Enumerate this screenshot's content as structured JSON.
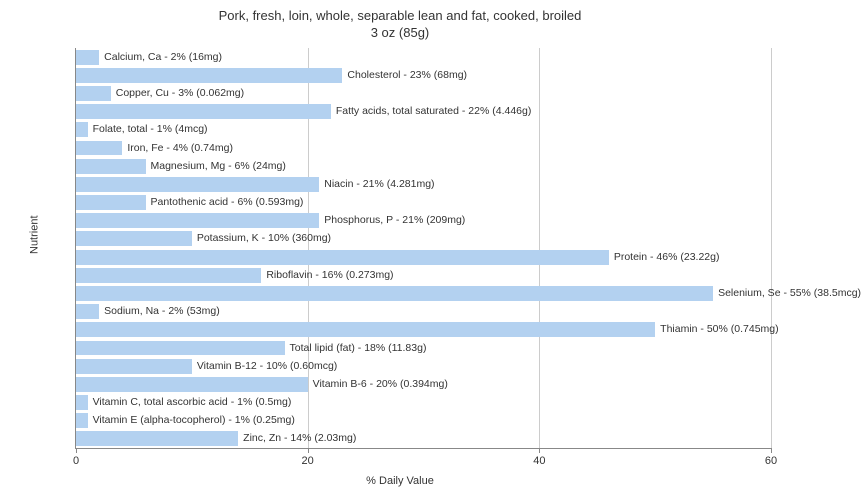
{
  "chart": {
    "type": "bar",
    "title_line1": "Pork, fresh, loin, whole, separable lean and fat, cooked, broiled",
    "title_line2": "3 oz (85g)",
    "title_fontsize": 13,
    "x_label": "% Daily Value",
    "y_label": "Nutrient",
    "label_fontsize": 11,
    "xlim": [
      0,
      60
    ],
    "x_ticks": [
      0,
      20,
      40,
      60
    ],
    "bar_color": "#b3d1f0",
    "grid_color": "#cccccc",
    "axis_color": "#888888",
    "background_color": "#ffffff",
    "text_color": "#333333",
    "bar_label_fontsize": 10.5,
    "bars": [
      {
        "label": "Calcium, Ca - 2% (16mg)",
        "value": 2
      },
      {
        "label": "Cholesterol - 23% (68mg)",
        "value": 23
      },
      {
        "label": "Copper, Cu - 3% (0.062mg)",
        "value": 3
      },
      {
        "label": "Fatty acids, total saturated - 22% (4.446g)",
        "value": 22
      },
      {
        "label": "Folate, total - 1% (4mcg)",
        "value": 1
      },
      {
        "label": "Iron, Fe - 4% (0.74mg)",
        "value": 4
      },
      {
        "label": "Magnesium, Mg - 6% (24mg)",
        "value": 6
      },
      {
        "label": "Niacin - 21% (4.281mg)",
        "value": 21
      },
      {
        "label": "Pantothenic acid - 6% (0.593mg)",
        "value": 6
      },
      {
        "label": "Phosphorus, P - 21% (209mg)",
        "value": 21
      },
      {
        "label": "Potassium, K - 10% (360mg)",
        "value": 10
      },
      {
        "label": "Protein - 46% (23.22g)",
        "value": 46
      },
      {
        "label": "Riboflavin - 16% (0.273mg)",
        "value": 16
      },
      {
        "label": "Selenium, Se - 55% (38.5mcg)",
        "value": 55
      },
      {
        "label": "Sodium, Na - 2% (53mg)",
        "value": 2
      },
      {
        "label": "Thiamin - 50% (0.745mg)",
        "value": 50
      },
      {
        "label": "Total lipid (fat) - 18% (11.83g)",
        "value": 18
      },
      {
        "label": "Vitamin B-12 - 10% (0.60mcg)",
        "value": 10
      },
      {
        "label": "Vitamin B-6 - 20% (0.394mg)",
        "value": 20
      },
      {
        "label": "Vitamin C, total ascorbic acid - 1% (0.5mg)",
        "value": 1
      },
      {
        "label": "Vitamin E (alpha-tocopherol) - 1% (0.25mg)",
        "value": 1
      },
      {
        "label": "Zinc, Zn - 14% (2.03mg)",
        "value": 14
      }
    ]
  }
}
